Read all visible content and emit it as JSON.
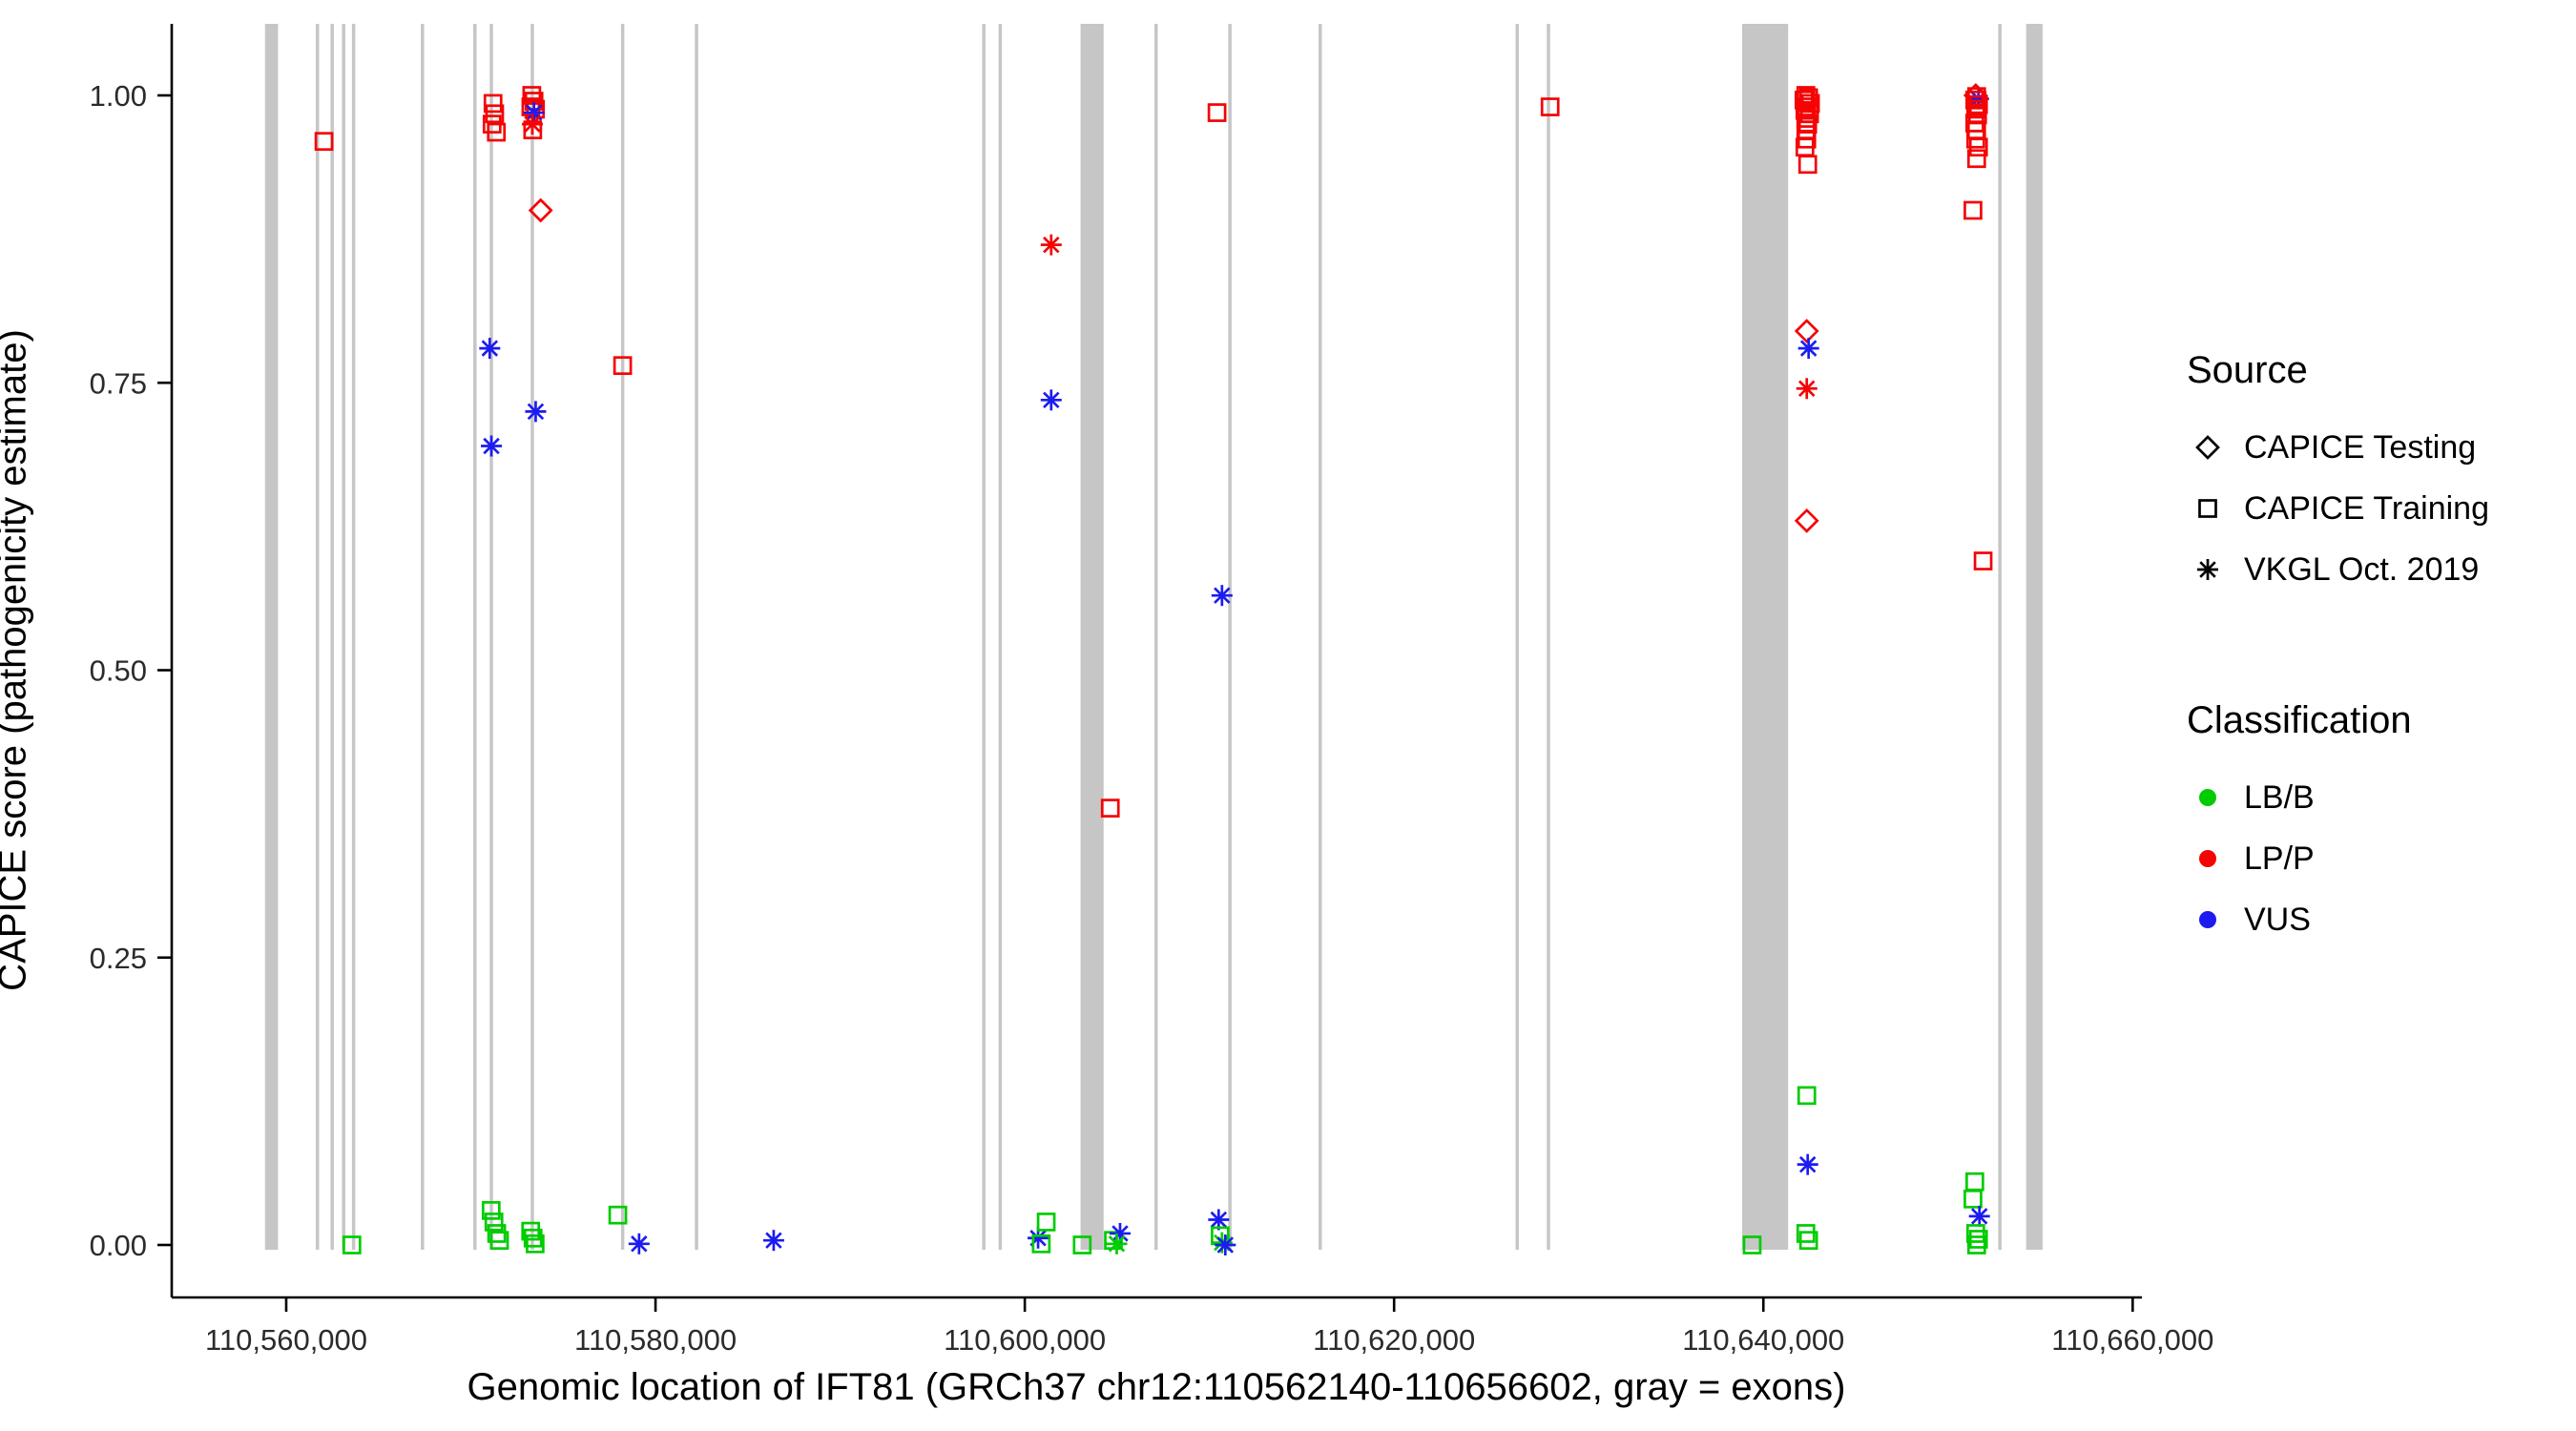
{
  "chart_data": {
    "type": "scatter",
    "title": "",
    "xlabel": "Genomic location of IFT81 (GRCh37 chr12:110562140-110656602, gray = exons)",
    "ylabel": "CAPICE score (pathogenicity estimate)",
    "xlim": [
      110553800,
      110660500
    ],
    "ylim": [
      0,
      1
    ],
    "grid": false,
    "x_ticks": [
      110560000,
      110580000,
      110600000,
      110620000,
      110640000,
      110660000
    ],
    "x_tick_labels": [
      "110,560,000",
      "110,580,000",
      "110,600,000",
      "110,620,000",
      "110,640,000",
      "110,660,000"
    ],
    "y_ticks": [
      0,
      0.25,
      0.5,
      0.75,
      1
    ],
    "y_tick_labels": [
      "0.00",
      "0.25",
      "0.50",
      "0.75",
      "1.00"
    ],
    "exon_color": "#c6c6c6",
    "colors": {
      "LB/B": "#00cc00",
      "LP/P": "#f40404",
      "VUS": "#1c1cf0"
    },
    "marker_shapes": {
      "testing": "diamond",
      "training": "square",
      "vkgl": "asterisk"
    },
    "source_labels": {
      "testing": "CAPICE Testing",
      "training": "CAPICE Training",
      "vkgl": "VKGL Oct. 2019"
    },
    "exons": [
      [
        110558850,
        110559560
      ],
      [
        110561600,
        110561780
      ],
      [
        110562400,
        110562580
      ],
      [
        110563020,
        110563200
      ],
      [
        110563560,
        110563740
      ],
      [
        110567290,
        110567470
      ],
      [
        110570130,
        110570310
      ],
      [
        110571020,
        110571200
      ],
      [
        110573240,
        110573420
      ],
      [
        110578130,
        110578310
      ],
      [
        110582130,
        110582310
      ],
      [
        110597690,
        110597870
      ],
      [
        110598580,
        110598760
      ],
      [
        110603020,
        110604270
      ],
      [
        110607020,
        110607200
      ],
      [
        110611020,
        110611200
      ],
      [
        110615910,
        110616090
      ],
      [
        110626580,
        110626760
      ],
      [
        110628270,
        110628450
      ],
      [
        110638850,
        110641340
      ],
      [
        110652720,
        110652900
      ],
      [
        110654230,
        110655120
      ]
    ],
    "points": [
      [
        110562045,
        0.96,
        "training",
        "LP/P"
      ],
      [
        110563556,
        0.0,
        "training",
        "LB/B"
      ],
      [
        110571023,
        0.78,
        "vkgl",
        "VUS"
      ],
      [
        110571112,
        0.695,
        "vkgl",
        "VUS"
      ],
      [
        110571200,
        0.993,
        "training",
        "LP/P"
      ],
      [
        110571290,
        0.984,
        "training",
        "LP/P"
      ],
      [
        110571150,
        0.975,
        "training",
        "LP/P"
      ],
      [
        110571380,
        0.968,
        "training",
        "LP/P"
      ],
      [
        110571100,
        0.03,
        "training",
        "LB/B"
      ],
      [
        110571250,
        0.02,
        "training",
        "LB/B"
      ],
      [
        110571400,
        0.01,
        "training",
        "LB/B"
      ],
      [
        110571550,
        0.004,
        "training",
        "LB/B"
      ],
      [
        110573300,
        1.0,
        "training",
        "LP/P"
      ],
      [
        110573420,
        0.995,
        "training",
        "LP/P"
      ],
      [
        110573250,
        0.99,
        "training",
        "LP/P"
      ],
      [
        110573500,
        0.988,
        "training",
        "LP/P"
      ],
      [
        110573350,
        0.97,
        "training",
        "LP/P"
      ],
      [
        110573420,
        0.985,
        "vkgl",
        "VUS"
      ],
      [
        110573330,
        0.975,
        "vkgl",
        "LP/P"
      ],
      [
        110573780,
        0.9,
        "testing",
        "LP/P"
      ],
      [
        110573510,
        0.725,
        "vkgl",
        "VUS"
      ],
      [
        110573240,
        0.012,
        "training",
        "LB/B"
      ],
      [
        110573370,
        0.006,
        "training",
        "LB/B"
      ],
      [
        110573480,
        0.001,
        "training",
        "LB/B"
      ],
      [
        110578220,
        0.765,
        "training",
        "LP/P"
      ],
      [
        110577960,
        0.026,
        "training",
        "LB/B"
      ],
      [
        110579110,
        0.001,
        "vkgl",
        "VUS"
      ],
      [
        110586400,
        0.004,
        "vkgl",
        "VUS"
      ],
      [
        110601430,
        0.87,
        "vkgl",
        "LP/P"
      ],
      [
        110601430,
        0.735,
        "vkgl",
        "VUS"
      ],
      [
        110600720,
        0.006,
        "vkgl",
        "VUS"
      ],
      [
        110601160,
        0.02,
        "training",
        "LB/B"
      ],
      [
        110600890,
        0.001,
        "training",
        "LB/B"
      ],
      [
        110603110,
        0.0,
        "training",
        "LB/B"
      ],
      [
        110604630,
        0.38,
        "training",
        "LP/P"
      ],
      [
        110604800,
        0.004,
        "training",
        "LB/B"
      ],
      [
        110605160,
        0.01,
        "vkgl",
        "VUS"
      ],
      [
        110604980,
        0.001,
        "vkgl",
        "LB/B"
      ],
      [
        110610410,
        0.985,
        "training",
        "LP/P"
      ],
      [
        110610680,
        0.565,
        "vkgl",
        "VUS"
      ],
      [
        110610500,
        0.022,
        "vkgl",
        "VUS"
      ],
      [
        110610580,
        0.008,
        "training",
        "LB/B"
      ],
      [
        110610680,
        0.002,
        "vkgl",
        "LB/B"
      ],
      [
        110610860,
        0.0,
        "vkgl",
        "VUS"
      ],
      [
        110628450,
        0.99,
        "training",
        "LP/P"
      ],
      [
        110639390,
        0.0,
        "training",
        "LB/B"
      ],
      [
        110642300,
        1.0,
        "training",
        "LP/P"
      ],
      [
        110642450,
        0.998,
        "training",
        "LP/P"
      ],
      [
        110642200,
        0.996,
        "training",
        "LP/P"
      ],
      [
        110642550,
        0.993,
        "training",
        "LP/P"
      ],
      [
        110642350,
        0.99,
        "training",
        "LP/P"
      ],
      [
        110642250,
        0.987,
        "training",
        "LP/P"
      ],
      [
        110642500,
        0.984,
        "training",
        "LP/P"
      ],
      [
        110642300,
        0.98,
        "training",
        "LP/P"
      ],
      [
        110642400,
        0.975,
        "training",
        "LP/P"
      ],
      [
        110642300,
        0.97,
        "training",
        "LP/P"
      ],
      [
        110642350,
        0.962,
        "training",
        "LP/P"
      ],
      [
        110642250,
        0.955,
        "training",
        "LP/P"
      ],
      [
        110642400,
        0.94,
        "training",
        "LP/P"
      ],
      [
        110642350,
        0.795,
        "testing",
        "LP/P"
      ],
      [
        110642450,
        0.78,
        "vkgl",
        "VUS"
      ],
      [
        110642350,
        0.745,
        "vkgl",
        "LP/P"
      ],
      [
        110642350,
        0.63,
        "testing",
        "LP/P"
      ],
      [
        110642350,
        0.13,
        "training",
        "LB/B"
      ],
      [
        110642400,
        0.07,
        "vkgl",
        "VUS"
      ],
      [
        110642300,
        0.01,
        "training",
        "LB/B"
      ],
      [
        110642450,
        0.004,
        "training",
        "LB/B"
      ],
      [
        110651500,
        1.0,
        "testing",
        "LP/P"
      ],
      [
        110651650,
        0.997,
        "vkgl",
        "VUS"
      ],
      [
        110651550,
        0.999,
        "training",
        "LP/P"
      ],
      [
        110651450,
        0.996,
        "training",
        "LP/P"
      ],
      [
        110651650,
        0.992,
        "training",
        "LP/P"
      ],
      [
        110651500,
        0.988,
        "training",
        "LP/P"
      ],
      [
        110651600,
        0.983,
        "training",
        "LP/P"
      ],
      [
        110651450,
        0.976,
        "training",
        "LP/P"
      ],
      [
        110651550,
        0.97,
        "training",
        "LP/P"
      ],
      [
        110651500,
        0.962,
        "training",
        "LP/P"
      ],
      [
        110651650,
        0.955,
        "training",
        "LP/P"
      ],
      [
        110651550,
        0.945,
        "training",
        "LP/P"
      ],
      [
        110651350,
        0.9,
        "training",
        "LP/P"
      ],
      [
        110651900,
        0.595,
        "training",
        "LP/P"
      ],
      [
        110651450,
        0.055,
        "training",
        "LB/B"
      ],
      [
        110651350,
        0.04,
        "training",
        "LB/B"
      ],
      [
        110651700,
        0.025,
        "vkgl",
        "VUS"
      ],
      [
        110651500,
        0.01,
        "training",
        "LB/B"
      ],
      [
        110651650,
        0.005,
        "training",
        "LB/B"
      ],
      [
        110651550,
        0.0,
        "training",
        "LB/B"
      ]
    ]
  },
  "legend": {
    "source": {
      "title": "Source",
      "items": [
        {
          "label": "CAPICE Testing",
          "marker": "diamond"
        },
        {
          "label": "CAPICE Training",
          "marker": "square"
        },
        {
          "label": "VKGL Oct. 2019",
          "marker": "asterisk"
        }
      ]
    },
    "classification": {
      "title": "Classification",
      "items": [
        {
          "label": "LB/B",
          "color": "#00cc00"
        },
        {
          "label": "LP/P",
          "color": "#f40404"
        },
        {
          "label": "VUS",
          "color": "#1c1cf0"
        }
      ]
    }
  }
}
